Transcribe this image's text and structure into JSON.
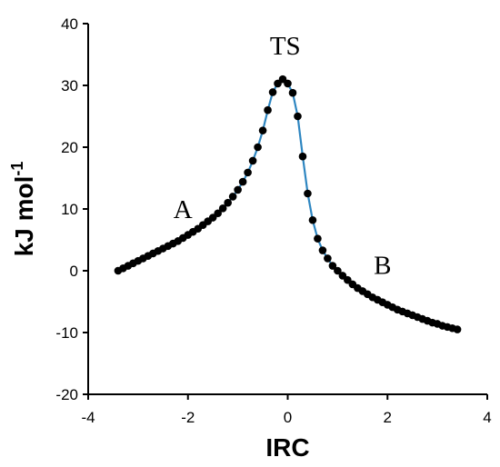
{
  "chart_data": {
    "type": "scatter",
    "title": "",
    "xlabel": "IRC",
    "ylabel": "kJ mol-1",
    "ylabel_main": "kJ mol",
    "ylabel_sup": "-1",
    "xlim": [
      -4,
      4
    ],
    "ylim": [
      -20,
      40
    ],
    "x_ticks": [
      -4,
      -2,
      0,
      2,
      4
    ],
    "y_ticks": [
      -20,
      -10,
      0,
      10,
      20,
      30,
      40
    ],
    "grid": false,
    "legend": "none",
    "line_color": "#2E86C1",
    "point_color": "#000000",
    "annotations": [
      {
        "text": "TS",
        "x": -0.05,
        "y": 35.0
      },
      {
        "text": "A",
        "x": -2.1,
        "y": 8.5
      },
      {
        "text": "B",
        "x": 1.9,
        "y": -0.5
      }
    ],
    "series": [
      {
        "x": [
          -3.4,
          -3.3,
          -3.2,
          -3.1,
          -3.0,
          -2.9,
          -2.8,
          -2.7,
          -2.6,
          -2.5,
          -2.4,
          -2.3,
          -2.2,
          -2.1,
          -2.0,
          -1.9,
          -1.8,
          -1.7,
          -1.6,
          -1.5,
          -1.4,
          -1.3,
          -1.2,
          -1.1,
          -1.0,
          -0.9,
          -0.8,
          -0.7,
          -0.6,
          -0.5,
          -0.4,
          -0.3,
          -0.2,
          -0.1,
          0.0,
          0.1,
          0.2,
          0.3,
          0.4,
          0.5,
          0.6,
          0.7,
          0.8,
          0.9,
          1.0,
          1.1,
          1.2,
          1.3,
          1.4,
          1.5,
          1.6,
          1.7,
          1.8,
          1.9,
          2.0,
          2.1,
          2.2,
          2.3,
          2.4,
          2.5,
          2.6,
          2.7,
          2.8,
          2.9,
          3.0,
          3.1,
          3.2,
          3.3,
          3.4
        ],
        "y": [
          0.0,
          0.4,
          0.8,
          1.2,
          1.6,
          2.0,
          2.4,
          2.8,
          3.2,
          3.6,
          4.0,
          4.4,
          4.8,
          5.3,
          5.8,
          6.3,
          6.8,
          7.4,
          8.0,
          8.6,
          9.3,
          10.1,
          11.0,
          12.0,
          13.1,
          14.4,
          15.9,
          17.8,
          20.0,
          22.7,
          26.0,
          28.9,
          30.3,
          31.0,
          30.3,
          28.8,
          25.0,
          18.5,
          12.5,
          8.2,
          5.2,
          3.3,
          2.0,
          0.8,
          0.0,
          -0.8,
          -1.5,
          -2.2,
          -2.8,
          -3.3,
          -3.8,
          -4.3,
          -4.7,
          -5.1,
          -5.5,
          -5.9,
          -6.3,
          -6.6,
          -6.9,
          -7.2,
          -7.5,
          -7.8,
          -8.1,
          -8.4,
          -8.6,
          -8.9,
          -9.1,
          -9.3,
          -9.5
        ]
      }
    ]
  }
}
